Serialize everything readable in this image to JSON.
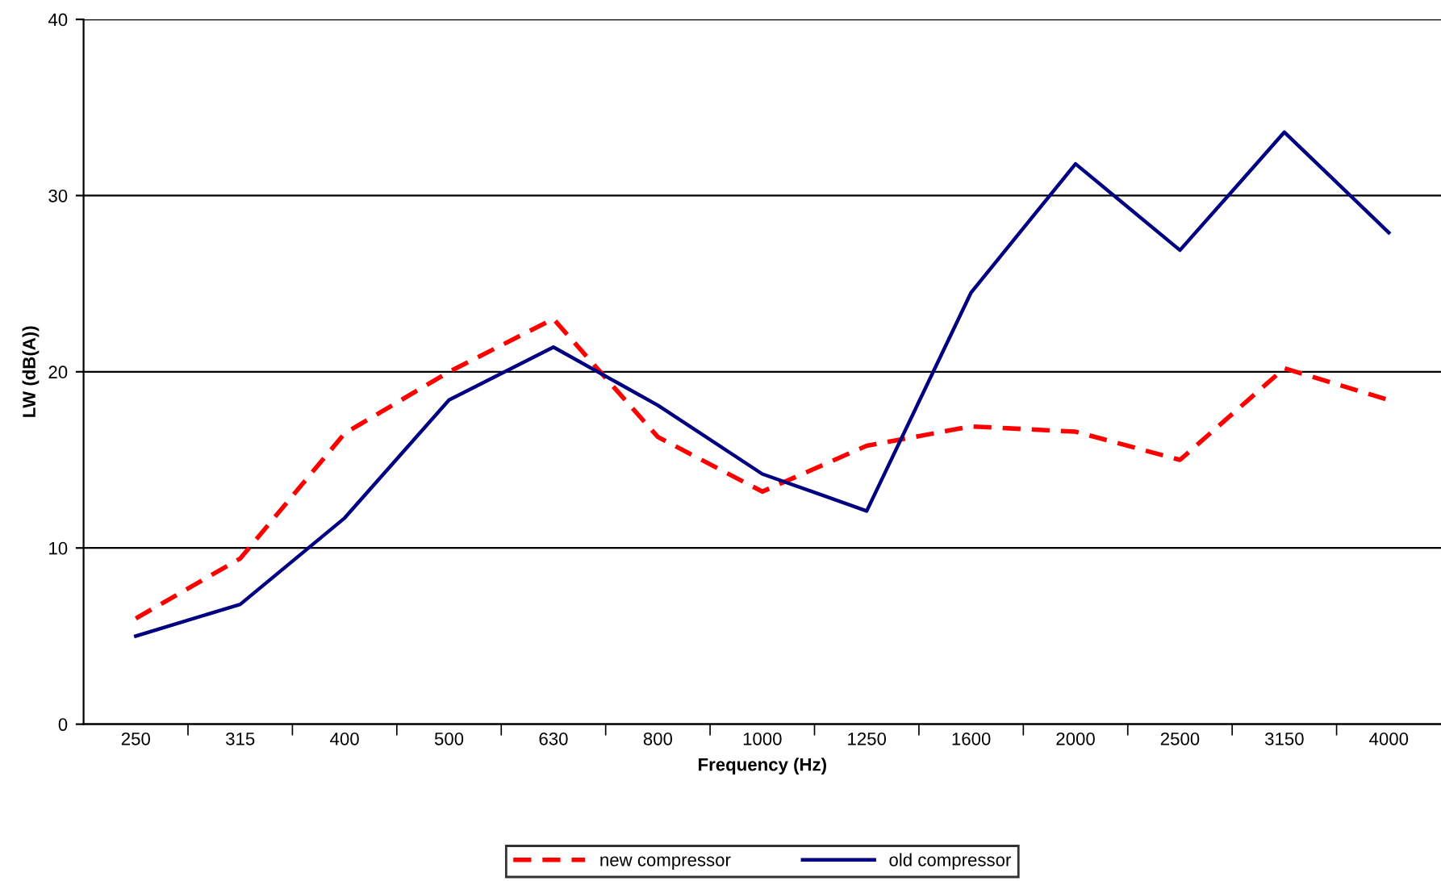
{
  "chart_data": {
    "type": "line",
    "xlabel": "Frequency (Hz)",
    "ylabel": "LW (dB(A))",
    "categories": [
      "250",
      "315",
      "400",
      "500",
      "630",
      "800",
      "1000",
      "1250",
      "1600",
      "2000",
      "2500",
      "3150",
      "4000"
    ],
    "series": [
      {
        "name": "new compressor",
        "color": "#ff0000",
        "line_style": "dashed",
        "values": [
          6.0,
          9.4,
          16.5,
          20.0,
          23.0,
          16.3,
          13.2,
          15.8,
          16.9,
          16.6,
          15.0,
          20.2,
          18.4
        ]
      },
      {
        "name": "old compressor",
        "color": "#000080",
        "line_style": "solid",
        "values": [
          5.0,
          6.8,
          11.7,
          18.4,
          21.4,
          18.1,
          14.2,
          12.1,
          24.5,
          31.8,
          26.9,
          33.6,
          27.9
        ]
      }
    ],
    "ylim": [
      0,
      40
    ],
    "yticks": [
      0,
      10,
      20,
      30,
      40
    ],
    "grid": "y",
    "legend": "bottom",
    "marker": "none"
  }
}
